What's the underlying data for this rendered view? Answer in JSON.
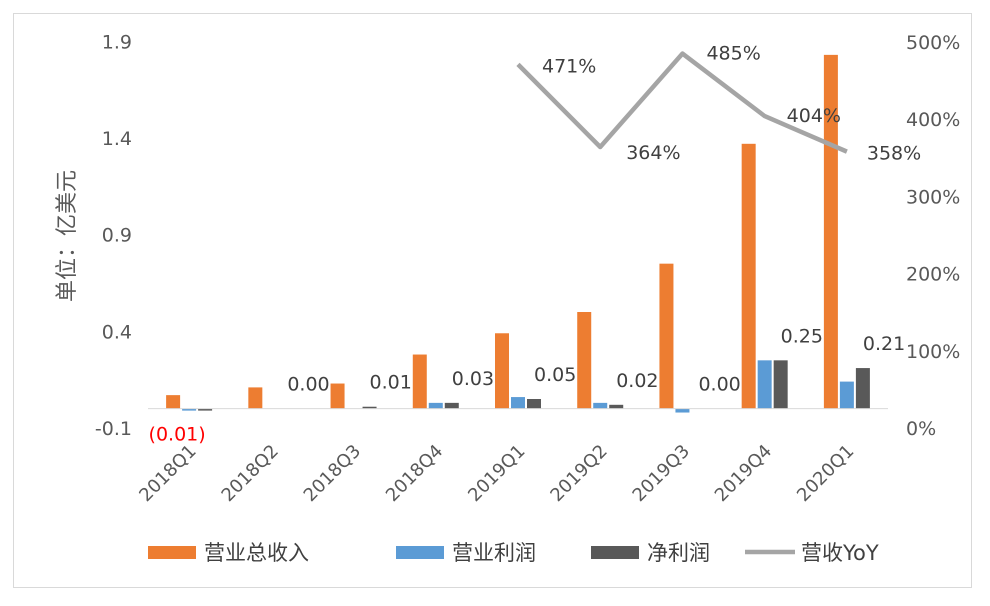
{
  "chart_data": {
    "type": "bar",
    "categories": [
      "2018Q1",
      "2018Q2",
      "2018Q3",
      "2018Q4",
      "2019Q1",
      "2019Q2",
      "2019Q3",
      "2019Q4",
      "2020Q1"
    ],
    "ylabel": "单位：亿美元",
    "yticks": [
      "-0.1",
      "0.4",
      "0.9",
      "1.4",
      "1.9"
    ],
    "y2ticks": [
      "0%",
      "100%",
      "200%",
      "300%",
      "400%",
      "500%"
    ],
    "ylim": [
      -0.1,
      2.0
    ],
    "y2lim": [
      0,
      500
    ],
    "series": [
      {
        "name": "营业总收入",
        "color": "#ed7d31",
        "values": [
          0.07,
          0.11,
          0.13,
          0.28,
          0.39,
          0.5,
          0.75,
          1.37,
          1.83
        ]
      },
      {
        "name": "营业利润",
        "color": "#5b9bd5",
        "values": [
          -0.01,
          0.0,
          0.0,
          0.03,
          0.06,
          0.03,
          -0.02,
          0.25,
          0.14
        ]
      },
      {
        "name": "净利润",
        "color": "#595959",
        "values": [
          -0.01,
          0.0,
          0.01,
          0.03,
          0.05,
          0.02,
          0.0,
          0.25,
          0.21
        ],
        "labels": [
          "(0.01)",
          "0.00",
          "0.01",
          "0.03",
          "0.05",
          "0.02",
          "0.00",
          "0.25",
          "0.21"
        ]
      },
      {
        "name": "营收YoY",
        "type": "line",
        "axis": "right",
        "color": "#a5a5a5",
        "values": [
          null,
          null,
          null,
          null,
          471,
          364,
          485,
          404,
          358
        ],
        "labels": [
          null,
          null,
          null,
          null,
          "471%",
          "364%",
          "485%",
          "404%",
          "358%"
        ]
      }
    ],
    "legend": "bottom",
    "negative_label_color": "#ff0000"
  }
}
